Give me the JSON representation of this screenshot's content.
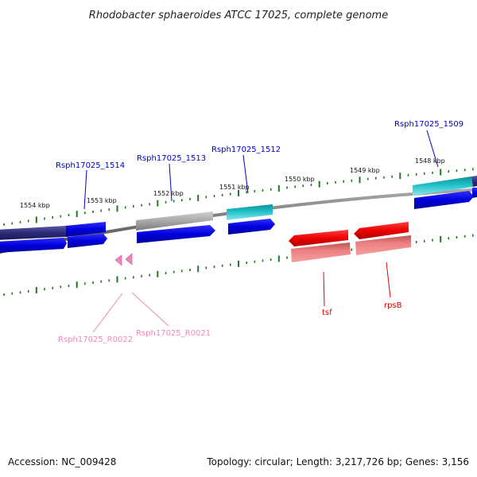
{
  "title": "Rhodobacter sphaeroides ATCC 17025, complete genome",
  "footer": {
    "accession": "Accession: NC_009428",
    "summary": "Topology: circular; Length: 3,217,726 bp; Genes: 3,156"
  },
  "ticks": [
    "1554 kbp",
    "1553 kbp",
    "1552 kbp",
    "1551 kbp",
    "1550 kbp",
    "1549 kbp",
    "1548 kbp"
  ],
  "genes": [
    {
      "label": "Rsph17025_1514",
      "color": "#0000cc"
    },
    {
      "label": "Rsph17025_1513",
      "color": "#0000cc"
    },
    {
      "label": "Rsph17025_1512",
      "color": "#0000cc"
    },
    {
      "label": "Rsph17025_1509",
      "color": "#0000cc"
    },
    {
      "label": "tsf",
      "color": "#dd0000"
    },
    {
      "label": "rpsB",
      "color": "#dd0000"
    },
    {
      "label": "Rsph17025_R0022",
      "color": "#ee88bb"
    },
    {
      "label": "Rsph17025_R0021",
      "color": "#ee88bb"
    }
  ],
  "colors": {
    "forward_cds": "#0000dd",
    "forward_cds_dark": "#2b2b7a",
    "reverse_cds": "#ee0000",
    "reverse_cds_light": "#ee8080",
    "grey_feature": "#9a9a9a",
    "teal_feature": "#20c0c8",
    "rna": "#ee88bb",
    "tick": "#227722",
    "backbone": "#777777"
  }
}
